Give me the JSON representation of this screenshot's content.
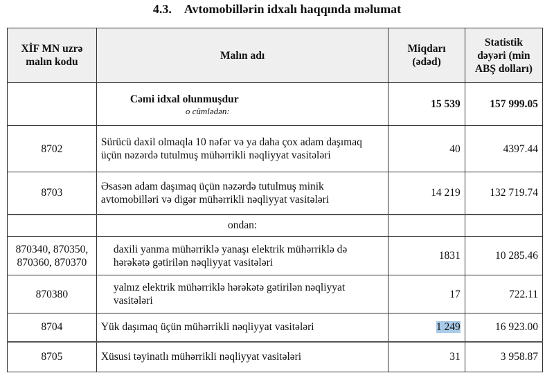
{
  "title": {
    "number": "4.3.",
    "text": "Avtomobillərin idxalı haqqında məlumat"
  },
  "table": {
    "headers": [
      "XİF MN uzrə malın kodu",
      "Malın adı",
      "Miqdarı (ədəd)",
      "Statistik dəyəri (min ABŞ dolları)"
    ],
    "total": {
      "label": "Cəmi idxal olunmuşdur",
      "sublabel": "o cümlədən:",
      "qty": "15 539",
      "value": "157 999.05"
    },
    "rows": [
      {
        "code": "8702",
        "name": "Sürücü daxil olmaqla 10 nəfər və ya daha çox adam daşımaq üçün nəzərdə tutulmuş mühərrikli nəqliyyat vasitələri",
        "qty": "40",
        "value": "4397.44"
      },
      {
        "code": "8703",
        "name": "Əsasən adam daşımaq üçün nəzərdə tutulmuş minik avtomobilləri və digər mühərrikli nəqliyyat vasitələri",
        "qty": "14 219",
        "value": "132 719.74"
      },
      {
        "code": "",
        "name": "ondan:",
        "qty": "",
        "value": ""
      },
      {
        "code": "870340, 870350, 870360, 870370",
        "name": "daxili yanma mühərriklə yanaşı elektrik mühərriklə də hərəkətə gətirilən nəqliyyat vasitələri",
        "qty": "1831",
        "value": "10 285.46"
      },
      {
        "code": "870380",
        "name": "yalnız elektrik mühərriklə hərəkətə gətirilən nəqliyyat vasitələri",
        "qty": "17",
        "value": "722.11"
      },
      {
        "code": "8704",
        "name": "Yük daşımaq üçün mühərrikli nəqliyyat vasitələri",
        "qty": "1 249",
        "value": "16 923.00"
      },
      {
        "code": "8705",
        "name": "Xüsusi təyinatlı mühərrikli nəqliyyat vasitələri",
        "qty": "31",
        "value": "3 958.87"
      }
    ],
    "highlight_color": "#a9cbe8"
  }
}
